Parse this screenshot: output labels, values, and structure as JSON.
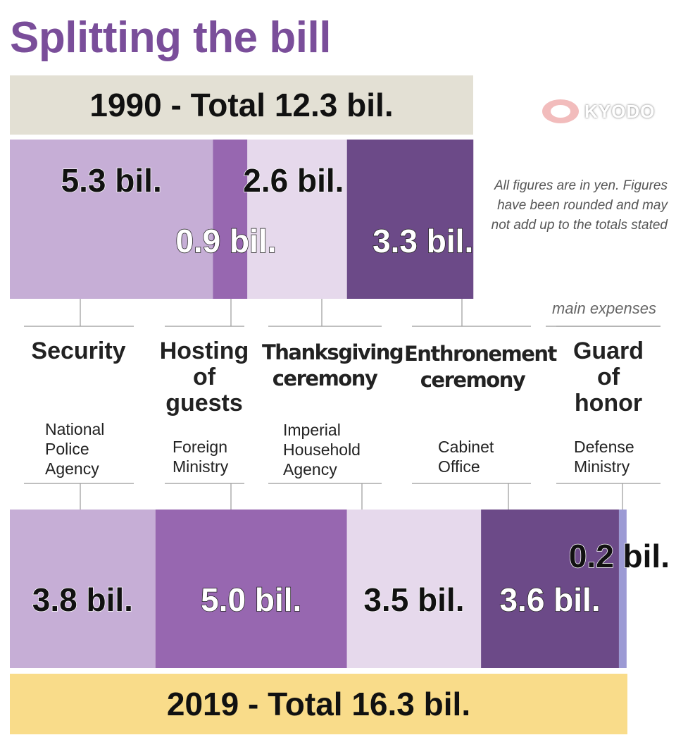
{
  "title": "Splitting the bill",
  "logo": "KYODO",
  "note": "All figures are in yen. Figures have been rounded and may not add up to the totals stated",
  "main_expenses_label": "main expenses",
  "colors": {
    "title": "#7a4e9a",
    "banner_1990": "#e3e0d4",
    "banner_2019": "#f9dc8a",
    "security": "#c6aed6",
    "hosting": "#9767b0",
    "thanksgiving": "#e6d9ec",
    "enthronement": "#6c4a88",
    "guard": "#9c9ad4"
  },
  "categories": [
    {
      "title": "Security",
      "ministry": "National Police Agency"
    },
    {
      "title": "Hosting of guests",
      "ministry": "Foreign Ministry"
    },
    {
      "title": "Thanksgiving ceremony",
      "ministry": "Imperial Household Agency"
    },
    {
      "title": "Enthronement ceremony",
      "ministry": "Cabinet Office"
    },
    {
      "title": "Guard of honor",
      "ministry": "Defense Ministry"
    }
  ],
  "chart_data": [
    {
      "type": "bar",
      "title": "1990 - Total 12.3 bil.",
      "categories": [
        "Security",
        "Hosting of guests",
        "Thanksgiving ceremony",
        "Enthronement ceremony"
      ],
      "values": [
        5.3,
        0.9,
        2.6,
        3.3
      ],
      "labels": [
        "5.3 bil.",
        "0.9 bil.",
        "2.6 bil.",
        "3.3 bil."
      ]
    },
    {
      "type": "bar",
      "title": "2019 - Total 16.3 bil.",
      "categories": [
        "Security",
        "Hosting of guests",
        "Thanksgiving ceremony",
        "Enthronement ceremony",
        "Guard of honor"
      ],
      "values": [
        3.8,
        5.0,
        3.5,
        3.6,
        0.2
      ],
      "labels": [
        "3.8 bil.",
        "5.0 bil.",
        "3.5 bil.",
        "3.6 bil.",
        "0.2 bil."
      ]
    }
  ]
}
